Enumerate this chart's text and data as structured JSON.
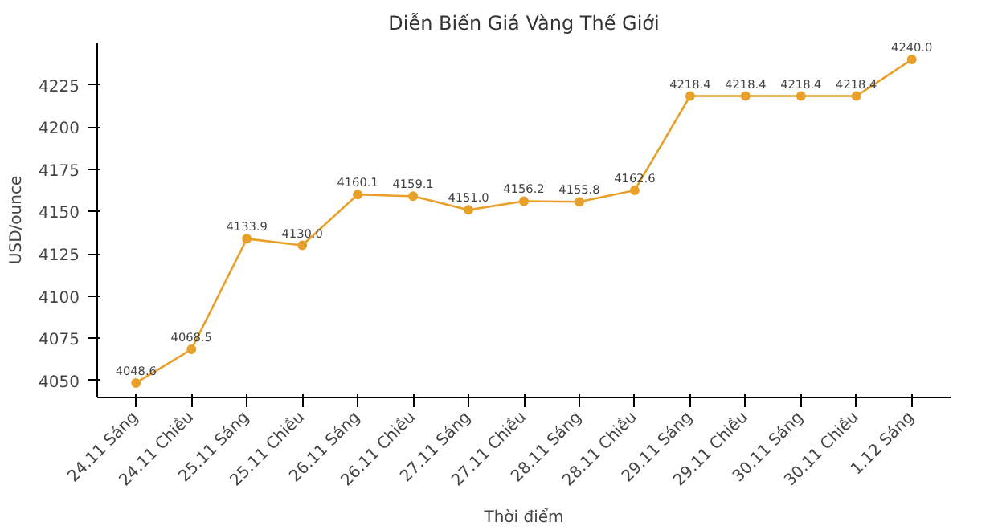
{
  "chart_data": {
    "type": "line",
    "title": "Diễn Biến Giá Vàng Thế Giới",
    "xlabel": "Thời điểm",
    "ylabel": "USD/ounce",
    "categories": [
      "24.11 Sáng",
      "24.11 Chiều",
      "25.11 Sáng",
      "25.11 Chiều",
      "26.11 Sáng",
      "26.11 Chiều",
      "27.11 Sáng",
      "27.11 Chiều",
      "28.11 Sáng",
      "28.11 Chiều",
      "29.11 Sáng",
      "29.11 Chiều",
      "30.11 Sáng",
      "30.11 Chiều",
      "1.12 Sáng"
    ],
    "series": [
      {
        "color": "#e8a02a",
        "values": [
          4048.6,
          4068.5,
          4133.9,
          4130.0,
          4160.1,
          4159.1,
          4151.0,
          4156.2,
          4155.8,
          4162.6,
          4218.4,
          4218.4,
          4218.4,
          4218.4,
          4240.0
        ],
        "value_labels": [
          "4048.6",
          "4068.5",
          "4133.9",
          "4130.0",
          "4160.1",
          "4159.1",
          "4151.0",
          "4156.2",
          "4155.8",
          "4162.6",
          "4218.4",
          "4218.4",
          "4218.4",
          "4218.4",
          "4240.0"
        ]
      }
    ],
    "ylim": [
      4040,
      4250
    ],
    "yticks": [
      4050,
      4075,
      4100,
      4125,
      4150,
      4175,
      4200,
      4225
    ],
    "marker": "circle",
    "line_style": "solid",
    "grid": false
  }
}
